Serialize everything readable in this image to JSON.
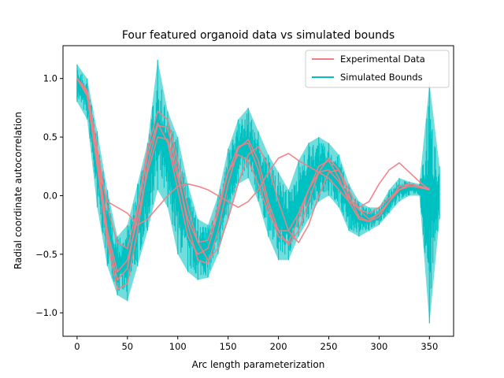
{
  "chart_data": {
    "type": "line",
    "title": "Four featured organoid data vs simulated bounds",
    "xlabel": "Arc length parameterization",
    "ylabel": "Radial coordinate autocorrelation",
    "xlim": [
      -14,
      374
    ],
    "ylim": [
      -1.2,
      1.28
    ],
    "xticks": [
      0,
      50,
      100,
      150,
      200,
      250,
      300,
      350
    ],
    "yticks": [
      -1.0,
      -0.5,
      0.0,
      0.5,
      1.0
    ],
    "xtick_labels": [
      "0",
      "50",
      "100",
      "150",
      "200",
      "250",
      "300",
      "350"
    ],
    "ytick_labels": [
      "−1.0",
      "−0.5",
      "0.0",
      "0.5",
      "1.0"
    ],
    "grid": false,
    "legend_position": "top-right",
    "colors": {
      "experimental": "#f07f86",
      "simulated": "#00c1c1"
    },
    "legend": [
      {
        "label": "Experimental Data",
        "color": "#f07f86"
      },
      {
        "label": "Simulated Bounds",
        "color": "#00c1c1"
      }
    ],
    "series": [
      {
        "name": "Simulated Bounds",
        "band": true,
        "x": [
          0,
          10,
          20,
          30,
          40,
          50,
          60,
          70,
          80,
          90,
          100,
          110,
          120,
          130,
          140,
          150,
          160,
          170,
          180,
          190,
          200,
          210,
          220,
          230,
          240,
          250,
          260,
          270,
          280,
          290,
          300,
          310,
          320,
          330,
          340,
          350,
          360
        ],
        "upper": [
          1.12,
          1.0,
          0.55,
          0.05,
          -0.35,
          -0.25,
          0.1,
          0.45,
          1.16,
          0.72,
          0.5,
          0.1,
          -0.2,
          -0.25,
          0.0,
          0.4,
          0.65,
          0.75,
          0.55,
          0.35,
          0.2,
          0.05,
          0.3,
          0.45,
          0.5,
          0.45,
          0.35,
          0.1,
          -0.05,
          -0.1,
          -0.1,
          0.05,
          0.15,
          0.12,
          0.1,
          0.96,
          0.25
        ],
        "lower": [
          0.8,
          0.65,
          -0.1,
          -0.6,
          -0.85,
          -0.9,
          -0.6,
          -0.3,
          0.05,
          -0.1,
          -0.5,
          -0.65,
          -0.72,
          -0.7,
          -0.5,
          -0.2,
          0.1,
          0.15,
          -0.05,
          -0.35,
          -0.55,
          -0.55,
          -0.35,
          -0.2,
          -0.05,
          0.0,
          -0.1,
          -0.3,
          -0.35,
          -0.3,
          -0.25,
          -0.15,
          -0.05,
          0.0,
          0.0,
          -1.09,
          -0.2
        ]
      },
      {
        "name": "Experimental Data",
        "x": [
          0,
          10,
          20,
          30,
          40,
          50,
          60,
          70,
          80,
          90,
          100,
          110,
          120,
          130,
          140,
          150,
          160,
          170,
          180,
          190,
          200,
          210,
          220,
          230,
          240,
          250,
          260,
          270,
          280,
          290,
          300,
          310,
          320,
          330,
          340,
          350
        ],
        "lines": [
          [
            1.0,
            0.88,
            0.3,
            -0.35,
            -0.72,
            -0.62,
            -0.12,
            0.35,
            0.62,
            0.45,
            0.05,
            -0.35,
            -0.5,
            -0.45,
            -0.15,
            0.2,
            0.42,
            0.45,
            0.22,
            -0.1,
            -0.35,
            -0.4,
            -0.2,
            0.05,
            0.25,
            0.3,
            0.15,
            -0.05,
            -0.2,
            -0.22,
            -0.15,
            -0.05,
            0.05,
            0.1,
            0.08,
            0.05
          ],
          [
            1.0,
            0.85,
            0.25,
            -0.4,
            -0.8,
            -0.75,
            -0.3,
            0.25,
            0.6,
            0.58,
            0.2,
            -0.25,
            -0.55,
            -0.58,
            -0.3,
            0.1,
            0.4,
            0.48,
            0.3,
            -0.05,
            -0.3,
            -0.42,
            -0.3,
            -0.05,
            0.2,
            0.32,
            0.22,
            0.0,
            -0.18,
            -0.22,
            -0.18,
            -0.05,
            0.08,
            0.1,
            0.08,
            0.06
          ],
          [
            1.0,
            0.9,
            0.4,
            -0.1,
            -0.4,
            -0.45,
            -0.1,
            0.4,
            0.72,
            0.65,
            0.3,
            -0.1,
            -0.4,
            -0.55,
            -0.45,
            -0.2,
            0.1,
            0.35,
            0.42,
            0.25,
            -0.05,
            -0.3,
            -0.4,
            -0.25,
            0.0,
            0.2,
            0.22,
            0.05,
            -0.12,
            -0.2,
            -0.15,
            -0.05,
            0.05,
            0.1,
            0.08,
            0.06
          ],
          [
            1.0,
            0.86,
            0.3,
            -0.05,
            -0.1,
            -0.15,
            -0.25,
            -0.2,
            -0.1,
            0.0,
            0.08,
            0.1,
            0.08,
            0.05,
            0.0,
            -0.05,
            -0.1,
            -0.05,
            0.05,
            0.2,
            0.32,
            0.36,
            0.3,
            0.25,
            0.2,
            0.15,
            0.05,
            -0.05,
            -0.1,
            -0.05,
            0.1,
            0.22,
            0.28,
            0.2,
            0.12,
            0.05
          ],
          [
            1.0,
            0.88,
            0.35,
            -0.3,
            -0.65,
            -0.55,
            -0.2,
            0.2,
            0.5,
            0.48,
            0.15,
            -0.2,
            -0.4,
            -0.38,
            -0.1,
            0.2,
            0.35,
            0.3,
            0.1,
            -0.15,
            -0.3,
            -0.3,
            -0.15,
            0.05,
            0.2,
            0.22,
            0.12,
            -0.02,
            -0.12,
            -0.15,
            -0.1,
            -0.02,
            0.05,
            0.08,
            0.07,
            0.05
          ]
        ]
      }
    ]
  }
}
